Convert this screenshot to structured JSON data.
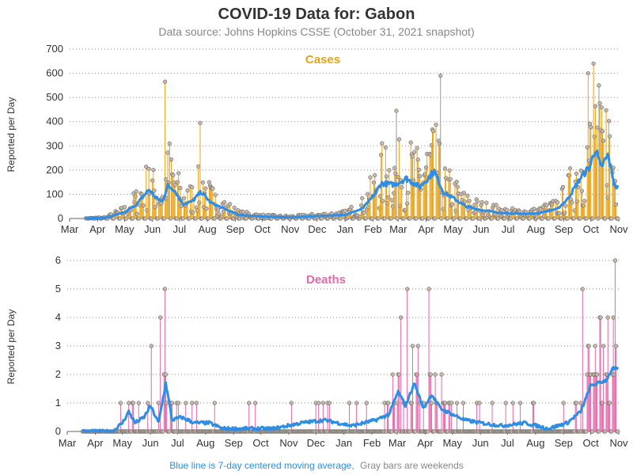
{
  "page": {
    "title": "COVID-19 Data for: Gabon",
    "subtitle": "Data source: Johns Hopkins CSSE (October 31, 2021 snapshot)",
    "footnote_blue": "Blue line is 7-day centered moving average,",
    "footnote_gray": "Gray bars are weekends"
  },
  "colors": {
    "cases": "#e8a317",
    "deaths": "#e36aa8",
    "moving_average": "#2e8ee6",
    "weekend": "#999999",
    "marker_fill": "#c9b8a8",
    "grid": "#888888"
  },
  "chart_data": [
    {
      "type": "bar",
      "title": "Cases",
      "ylabel": "Reported per Day",
      "ylim": [
        0,
        700
      ],
      "yticks": [
        0,
        100,
        200,
        300,
        400,
        500,
        600,
        700
      ],
      "x_ticks": [
        "Mar",
        "Apr",
        "May",
        "Jun",
        "Jul",
        "Aug",
        "Sep",
        "Oct",
        "Nov",
        "Dec",
        "Jan",
        "Feb",
        "Mar",
        "Apr",
        "May",
        "Jun",
        "Jul",
        "Aug",
        "Sep",
        "Oct",
        "Nov"
      ],
      "x_start": "2020-03-01",
      "x_end": "2021-11-01",
      "grid": true,
      "daily_values_description": "Lollipop bars of daily reported cases with circle markers; weekend bars gray",
      "key_points": [
        {
          "date": "2020-05-28",
          "value": 205
        },
        {
          "date": "2020-06-15",
          "value": 565
        },
        {
          "date": "2020-06-20",
          "value": 310
        },
        {
          "date": "2020-07-24",
          "value": 395
        },
        {
          "date": "2021-02-27",
          "value": 445
        },
        {
          "date": "2021-04-17",
          "value": 590
        },
        {
          "date": "2021-09-28",
          "value": 600
        },
        {
          "date": "2021-10-04",
          "value": 640
        },
        {
          "date": "2021-10-10",
          "value": 550
        }
      ],
      "moving_average": [
        {
          "date": "2020-03-15",
          "value": 0
        },
        {
          "date": "2020-04-10",
          "value": 3
        },
        {
          "date": "2020-05-01",
          "value": 25
        },
        {
          "date": "2020-05-15",
          "value": 60
        },
        {
          "date": "2020-05-28",
          "value": 120
        },
        {
          "date": "2020-06-05",
          "value": 85
        },
        {
          "date": "2020-06-12",
          "value": 70
        },
        {
          "date": "2020-06-18",
          "value": 135
        },
        {
          "date": "2020-06-25",
          "value": 120
        },
        {
          "date": "2020-07-05",
          "value": 60
        },
        {
          "date": "2020-07-15",
          "value": 70
        },
        {
          "date": "2020-07-25",
          "value": 110
        },
        {
          "date": "2020-08-05",
          "value": 65
        },
        {
          "date": "2020-08-20",
          "value": 40
        },
        {
          "date": "2020-09-05",
          "value": 15
        },
        {
          "date": "2020-10-01",
          "value": 8
        },
        {
          "date": "2020-11-01",
          "value": 5
        },
        {
          "date": "2020-12-01",
          "value": 10
        },
        {
          "date": "2021-01-01",
          "value": 15
        },
        {
          "date": "2021-01-20",
          "value": 40
        },
        {
          "date": "2021-02-01",
          "value": 90
        },
        {
          "date": "2021-02-10",
          "value": 145
        },
        {
          "date": "2021-02-25",
          "value": 140
        },
        {
          "date": "2021-03-10",
          "value": 165
        },
        {
          "date": "2021-03-25",
          "value": 130
        },
        {
          "date": "2021-04-10",
          "value": 195
        },
        {
          "date": "2021-04-20",
          "value": 110
        },
        {
          "date": "2021-05-01",
          "value": 85
        },
        {
          "date": "2021-05-15",
          "value": 50
        },
        {
          "date": "2021-06-01",
          "value": 35
        },
        {
          "date": "2021-07-01",
          "value": 20
        },
        {
          "date": "2021-08-01",
          "value": 20
        },
        {
          "date": "2021-08-25",
          "value": 40
        },
        {
          "date": "2021-09-05",
          "value": 80
        },
        {
          "date": "2021-09-20",
          "value": 170
        },
        {
          "date": "2021-09-30",
          "value": 215
        },
        {
          "date": "2021-10-06",
          "value": 290
        },
        {
          "date": "2021-10-12",
          "value": 210
        },
        {
          "date": "2021-10-20",
          "value": 260
        },
        {
          "date": "2021-10-28",
          "value": 130
        }
      ]
    },
    {
      "type": "bar",
      "title": "Deaths",
      "ylabel": "Reported per Day",
      "ylim": [
        0,
        6
      ],
      "yticks": [
        0,
        1,
        2,
        3,
        4,
        5,
        6
      ],
      "x_ticks": [
        "Mar",
        "Apr",
        "May",
        "Jun",
        "Jul",
        "Aug",
        "Sep",
        "Oct",
        "Nov",
        "Dec",
        "Jan",
        "Feb",
        "Mar",
        "Apr",
        "May",
        "Jun",
        "Jul",
        "Aug",
        "Sep",
        "Oct",
        "Nov"
      ],
      "x_start": "2020-03-01",
      "x_end": "2021-11-01",
      "grid": true,
      "daily_values_description": "Lollipop bars of daily reported deaths with circle markers; weekend bars gray",
      "key_points": [
        {
          "date": "2020-06-02",
          "value": 3
        },
        {
          "date": "2020-06-12",
          "value": 4
        },
        {
          "date": "2020-06-17",
          "value": 5
        },
        {
          "date": "2021-03-05",
          "value": 4
        },
        {
          "date": "2021-03-12",
          "value": 5
        },
        {
          "date": "2021-04-05",
          "value": 5
        },
        {
          "date": "2021-09-22",
          "value": 5
        },
        {
          "date": "2021-10-28",
          "value": 6
        }
      ],
      "moving_average": [
        {
          "date": "2020-03-15",
          "value": 0
        },
        {
          "date": "2020-04-20",
          "value": 0
        },
        {
          "date": "2020-05-01",
          "value": 0.3
        },
        {
          "date": "2020-05-08",
          "value": 0.7
        },
        {
          "date": "2020-05-15",
          "value": 0.3
        },
        {
          "date": "2020-05-25",
          "value": 0.5
        },
        {
          "date": "2020-06-01",
          "value": 0.9
        },
        {
          "date": "2020-06-10",
          "value": 0.3
        },
        {
          "date": "2020-06-18",
          "value": 1.7
        },
        {
          "date": "2020-06-25",
          "value": 0.4
        },
        {
          "date": "2020-07-05",
          "value": 0.5
        },
        {
          "date": "2020-07-20",
          "value": 0.3
        },
        {
          "date": "2020-08-05",
          "value": 0.3
        },
        {
          "date": "2020-08-20",
          "value": 0.1
        },
        {
          "date": "2020-09-10",
          "value": 0.1
        },
        {
          "date": "2020-10-15",
          "value": 0.1
        },
        {
          "date": "2020-11-15",
          "value": 0.3
        },
        {
          "date": "2020-12-10",
          "value": 0.4
        },
        {
          "date": "2021-01-10",
          "value": 0.2
        },
        {
          "date": "2021-02-05",
          "value": 0.4
        },
        {
          "date": "2021-02-20",
          "value": 0.6
        },
        {
          "date": "2021-03-02",
          "value": 1.4
        },
        {
          "date": "2021-03-10",
          "value": 0.9
        },
        {
          "date": "2021-03-20",
          "value": 1.7
        },
        {
          "date": "2021-03-30",
          "value": 0.8
        },
        {
          "date": "2021-04-08",
          "value": 1.3
        },
        {
          "date": "2021-04-18",
          "value": 0.8
        },
        {
          "date": "2021-05-01",
          "value": 0.6
        },
        {
          "date": "2021-05-15",
          "value": 0.4
        },
        {
          "date": "2021-06-01",
          "value": 0.3
        },
        {
          "date": "2021-06-25",
          "value": 0.2
        },
        {
          "date": "2021-07-20",
          "value": 0.3
        },
        {
          "date": "2021-08-15",
          "value": 0.1
        },
        {
          "date": "2021-09-05",
          "value": 0.3
        },
        {
          "date": "2021-09-20",
          "value": 0.7
        },
        {
          "date": "2021-10-01",
          "value": 1.6
        },
        {
          "date": "2021-10-10",
          "value": 1.7
        },
        {
          "date": "2021-10-18",
          "value": 1.8
        },
        {
          "date": "2021-10-25",
          "value": 2.2
        },
        {
          "date": "2021-10-30",
          "value": 2.2
        }
      ]
    }
  ]
}
